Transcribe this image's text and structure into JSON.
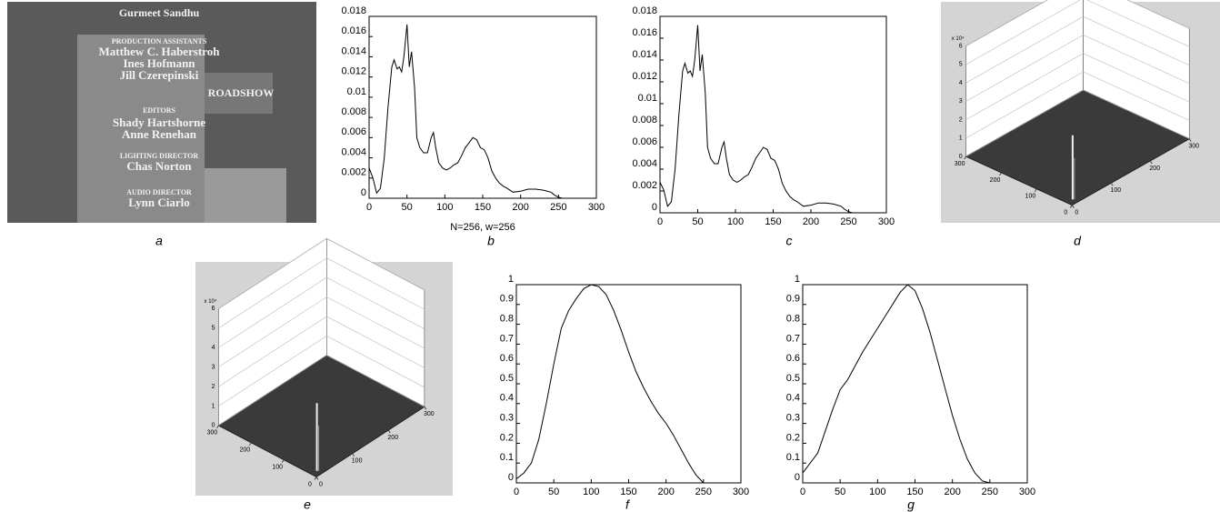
{
  "photo": {
    "label": "a",
    "texts": [
      "Gurmeet Sandhu",
      "PRODUCTION ASSISTANTS",
      "Matthew C. Haberstroh",
      "Ines Hofmann",
      "Jill Czerepinski",
      "ROADSHOW",
      "EDITORS",
      "Shady Hartshorne",
      "Anne Renehan",
      "LIGHTING DIRECTOR",
      "Chas Norton",
      "AUDIO DIRECTOR",
      "Lynn Ciarlo"
    ]
  },
  "chart_data": [
    {
      "type": "line",
      "label": "b",
      "xlabel": "N=256, w=256",
      "color": "#000000",
      "x": [
        0,
        5,
        10,
        15,
        20,
        25,
        30,
        33,
        37,
        40,
        43,
        46,
        50,
        53,
        56,
        60,
        63,
        67,
        72,
        77,
        82,
        85,
        88,
        92,
        97,
        102,
        107,
        112,
        117,
        122,
        127,
        132,
        137,
        142,
        147,
        152,
        157,
        162,
        167,
        172,
        177,
        182,
        190,
        200,
        210,
        220,
        230,
        240,
        245,
        250,
        255
      ],
      "values": [
        0.003,
        0.002,
        0.0005,
        0.001,
        0.004,
        0.009,
        0.013,
        0.0137,
        0.0128,
        0.013,
        0.0125,
        0.014,
        0.0172,
        0.013,
        0.0145,
        0.011,
        0.006,
        0.005,
        0.0045,
        0.0045,
        0.006,
        0.0065,
        0.005,
        0.0035,
        0.003,
        0.0028,
        0.003,
        0.0033,
        0.0035,
        0.0042,
        0.005,
        0.0055,
        0.006,
        0.0058,
        0.005,
        0.0048,
        0.004,
        0.0027,
        0.002,
        0.0015,
        0.0012,
        0.001,
        0.0006,
        0.0007,
        0.0009,
        0.0009,
        0.0008,
        0.0006,
        0.0003,
        0.0001,
        0
      ],
      "xlim": [
        0,
        300
      ],
      "ylim": [
        0,
        0.018
      ],
      "xticks": [
        0,
        50,
        100,
        150,
        200,
        250,
        300
      ],
      "yticks": [
        0,
        0.002,
        0.004,
        0.006,
        0.008,
        0.01,
        0.012,
        0.014,
        0.016,
        0.018
      ]
    },
    {
      "type": "line",
      "label": "c",
      "color": "#000000",
      "x": [
        0,
        5,
        10,
        15,
        20,
        25,
        30,
        33,
        37,
        40,
        43,
        46,
        50,
        53,
        56,
        60,
        63,
        67,
        72,
        77,
        82,
        85,
        88,
        92,
        97,
        102,
        107,
        112,
        117,
        122,
        127,
        132,
        137,
        142,
        147,
        152,
        157,
        162,
        167,
        172,
        177,
        182,
        190,
        200,
        210,
        220,
        230,
        240,
        245,
        250,
        255
      ],
      "values": [
        0.0028,
        0.0021,
        0.0006,
        0.001,
        0.004,
        0.009,
        0.013,
        0.0137,
        0.0128,
        0.013,
        0.0125,
        0.014,
        0.0172,
        0.013,
        0.0145,
        0.011,
        0.006,
        0.005,
        0.0045,
        0.0045,
        0.006,
        0.0065,
        0.005,
        0.0035,
        0.003,
        0.0028,
        0.003,
        0.0033,
        0.0035,
        0.0042,
        0.005,
        0.0055,
        0.006,
        0.0058,
        0.005,
        0.0048,
        0.004,
        0.0027,
        0.002,
        0.0015,
        0.0012,
        0.001,
        0.0006,
        0.0007,
        0.0009,
        0.0009,
        0.0008,
        0.0006,
        0.0003,
        0.0001,
        0
      ],
      "xlim": [
        0,
        300
      ],
      "ylim": [
        0,
        0.018
      ],
      "xticks": [
        0,
        50,
        100,
        150,
        200,
        250,
        300
      ],
      "yticks": [
        0,
        0.002,
        0.004,
        0.006,
        0.008,
        0.01,
        0.012,
        0.014,
        0.016,
        0.018
      ]
    },
    {
      "type": "line",
      "label": "f",
      "color": "#000000",
      "x": [
        0,
        10,
        20,
        30,
        40,
        50,
        60,
        70,
        80,
        90,
        100,
        110,
        120,
        130,
        140,
        150,
        160,
        170,
        180,
        190,
        200,
        210,
        220,
        230,
        240,
        250
      ],
      "values": [
        0.02,
        0.05,
        0.1,
        0.22,
        0.4,
        0.6,
        0.78,
        0.87,
        0.93,
        0.98,
        1,
        0.99,
        0.95,
        0.87,
        0.77,
        0.66,
        0.56,
        0.48,
        0.41,
        0.35,
        0.3,
        0.24,
        0.17,
        0.1,
        0.04,
        0
      ],
      "xlim": [
        0,
        300
      ],
      "ylim": [
        0,
        1
      ],
      "xticks": [
        0,
        50,
        100,
        150,
        200,
        250,
        300
      ],
      "yticks": [
        0,
        0.1,
        0.2,
        0.3,
        0.4,
        0.5,
        0.6,
        0.7,
        0.8,
        0.9,
        1
      ]
    },
    {
      "type": "line",
      "label": "g",
      "color": "#000000",
      "x": [
        0,
        10,
        20,
        30,
        40,
        50,
        60,
        70,
        80,
        90,
        100,
        110,
        120,
        130,
        140,
        150,
        160,
        170,
        180,
        190,
        200,
        210,
        220,
        230,
        240,
        250
      ],
      "values": [
        0.05,
        0.1,
        0.15,
        0.26,
        0.37,
        0.47,
        0.52,
        0.59,
        0.66,
        0.72,
        0.78,
        0.84,
        0.9,
        0.96,
        1,
        0.97,
        0.88,
        0.76,
        0.62,
        0.48,
        0.34,
        0.22,
        0.12,
        0.05,
        0.01,
        0
      ],
      "xlim": [
        0,
        300
      ],
      "ylim": [
        0,
        1
      ],
      "xticks": [
        0,
        50,
        100,
        150,
        200,
        250,
        300
      ],
      "yticks": [
        0,
        0.1,
        0.2,
        0.3,
        0.4,
        0.5,
        0.6,
        0.7,
        0.8,
        0.9,
        1
      ]
    }
  ],
  "surface_plots": [
    {
      "label": "d",
      "z_multiplier": "x 10⁴",
      "zticks": [
        0,
        1,
        2,
        3,
        4,
        5,
        6
      ],
      "xticks": [
        0,
        100,
        200,
        300
      ],
      "yticks": [
        0,
        100,
        200,
        300
      ]
    },
    {
      "label": "e",
      "z_multiplier": "x 10⁴",
      "zticks": [
        0,
        1,
        2,
        3,
        4,
        5,
        6
      ],
      "xticks": [
        0,
        100,
        200,
        300
      ],
      "yticks": [
        0,
        100,
        200,
        300
      ]
    }
  ]
}
